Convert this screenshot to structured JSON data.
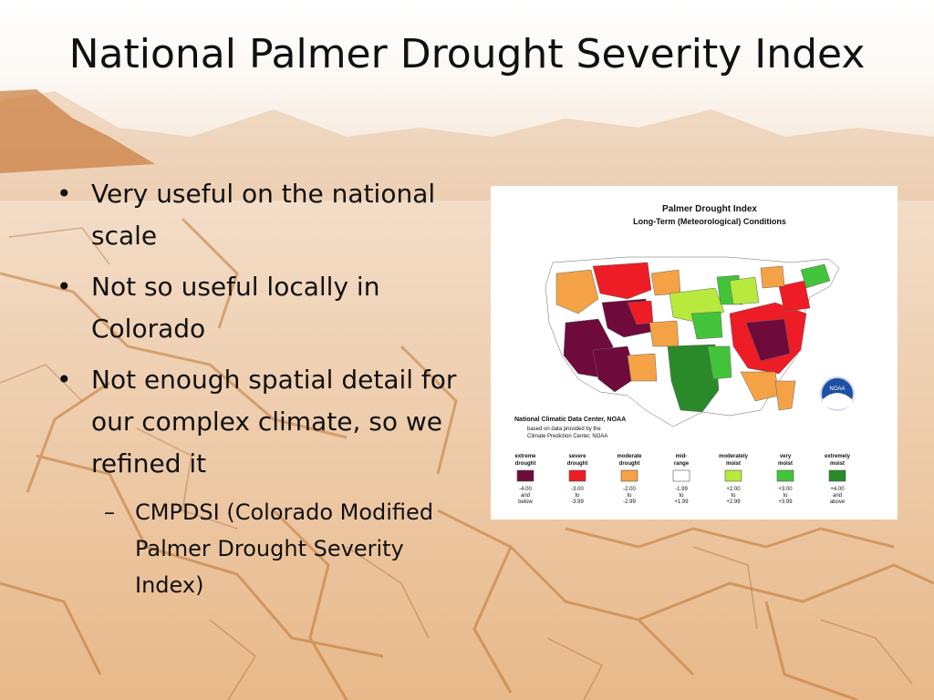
{
  "slide": {
    "title": "National Palmer Drought Severity Index",
    "bullets": [
      "Very useful on the national scale",
      "Not so useful locally in Colorado",
      "Not enough spatial detail for our complex climate, so we refined it"
    ],
    "sub_bullets": [
      "CMPDSI (Colorado Modified Palmer Drought Severity Index)"
    ]
  },
  "map": {
    "title": "Palmer Drought Index",
    "subtitle": "Long-Term (Meteorological) Conditions",
    "source_line1": "National Climatic Data Center, NOAA",
    "source_line2": "based on data provided by the",
    "source_line3": "Climate Prediction Center, NOAA",
    "logo_text": "NOAA",
    "legend": [
      {
        "label1": "extreme",
        "label2": "drought",
        "range1": "-4.00",
        "range2": "and",
        "range3": "below",
        "color": "#6e0b3b"
      },
      {
        "label1": "severe",
        "label2": "drought",
        "range1": "-3.00",
        "range2": "to",
        "range3": "-3.99",
        "color": "#ee1c25"
      },
      {
        "label1": "moderate",
        "label2": "drought",
        "range1": "-2.00",
        "range2": "to",
        "range3": "-2.99",
        "color": "#f4a245"
      },
      {
        "label1": "mid-",
        "label2": "range",
        "range1": "-1.99",
        "range2": "to",
        "range3": "+1.99",
        "color": "#ffffff"
      },
      {
        "label1": "moderately",
        "label2": "moist",
        "range1": "+2.00",
        "range2": "to",
        "range3": "+2.99",
        "color": "#b7ea3c"
      },
      {
        "label1": "very",
        "label2": "moist",
        "range1": "+3.00",
        "range2": "to",
        "range3": "+3.99",
        "color": "#43c43a"
      },
      {
        "label1": "extremely",
        "label2": "moist",
        "range1": "+4.00",
        "range2": "and",
        "range3": "above",
        "color": "#2a8a2a"
      }
    ]
  }
}
